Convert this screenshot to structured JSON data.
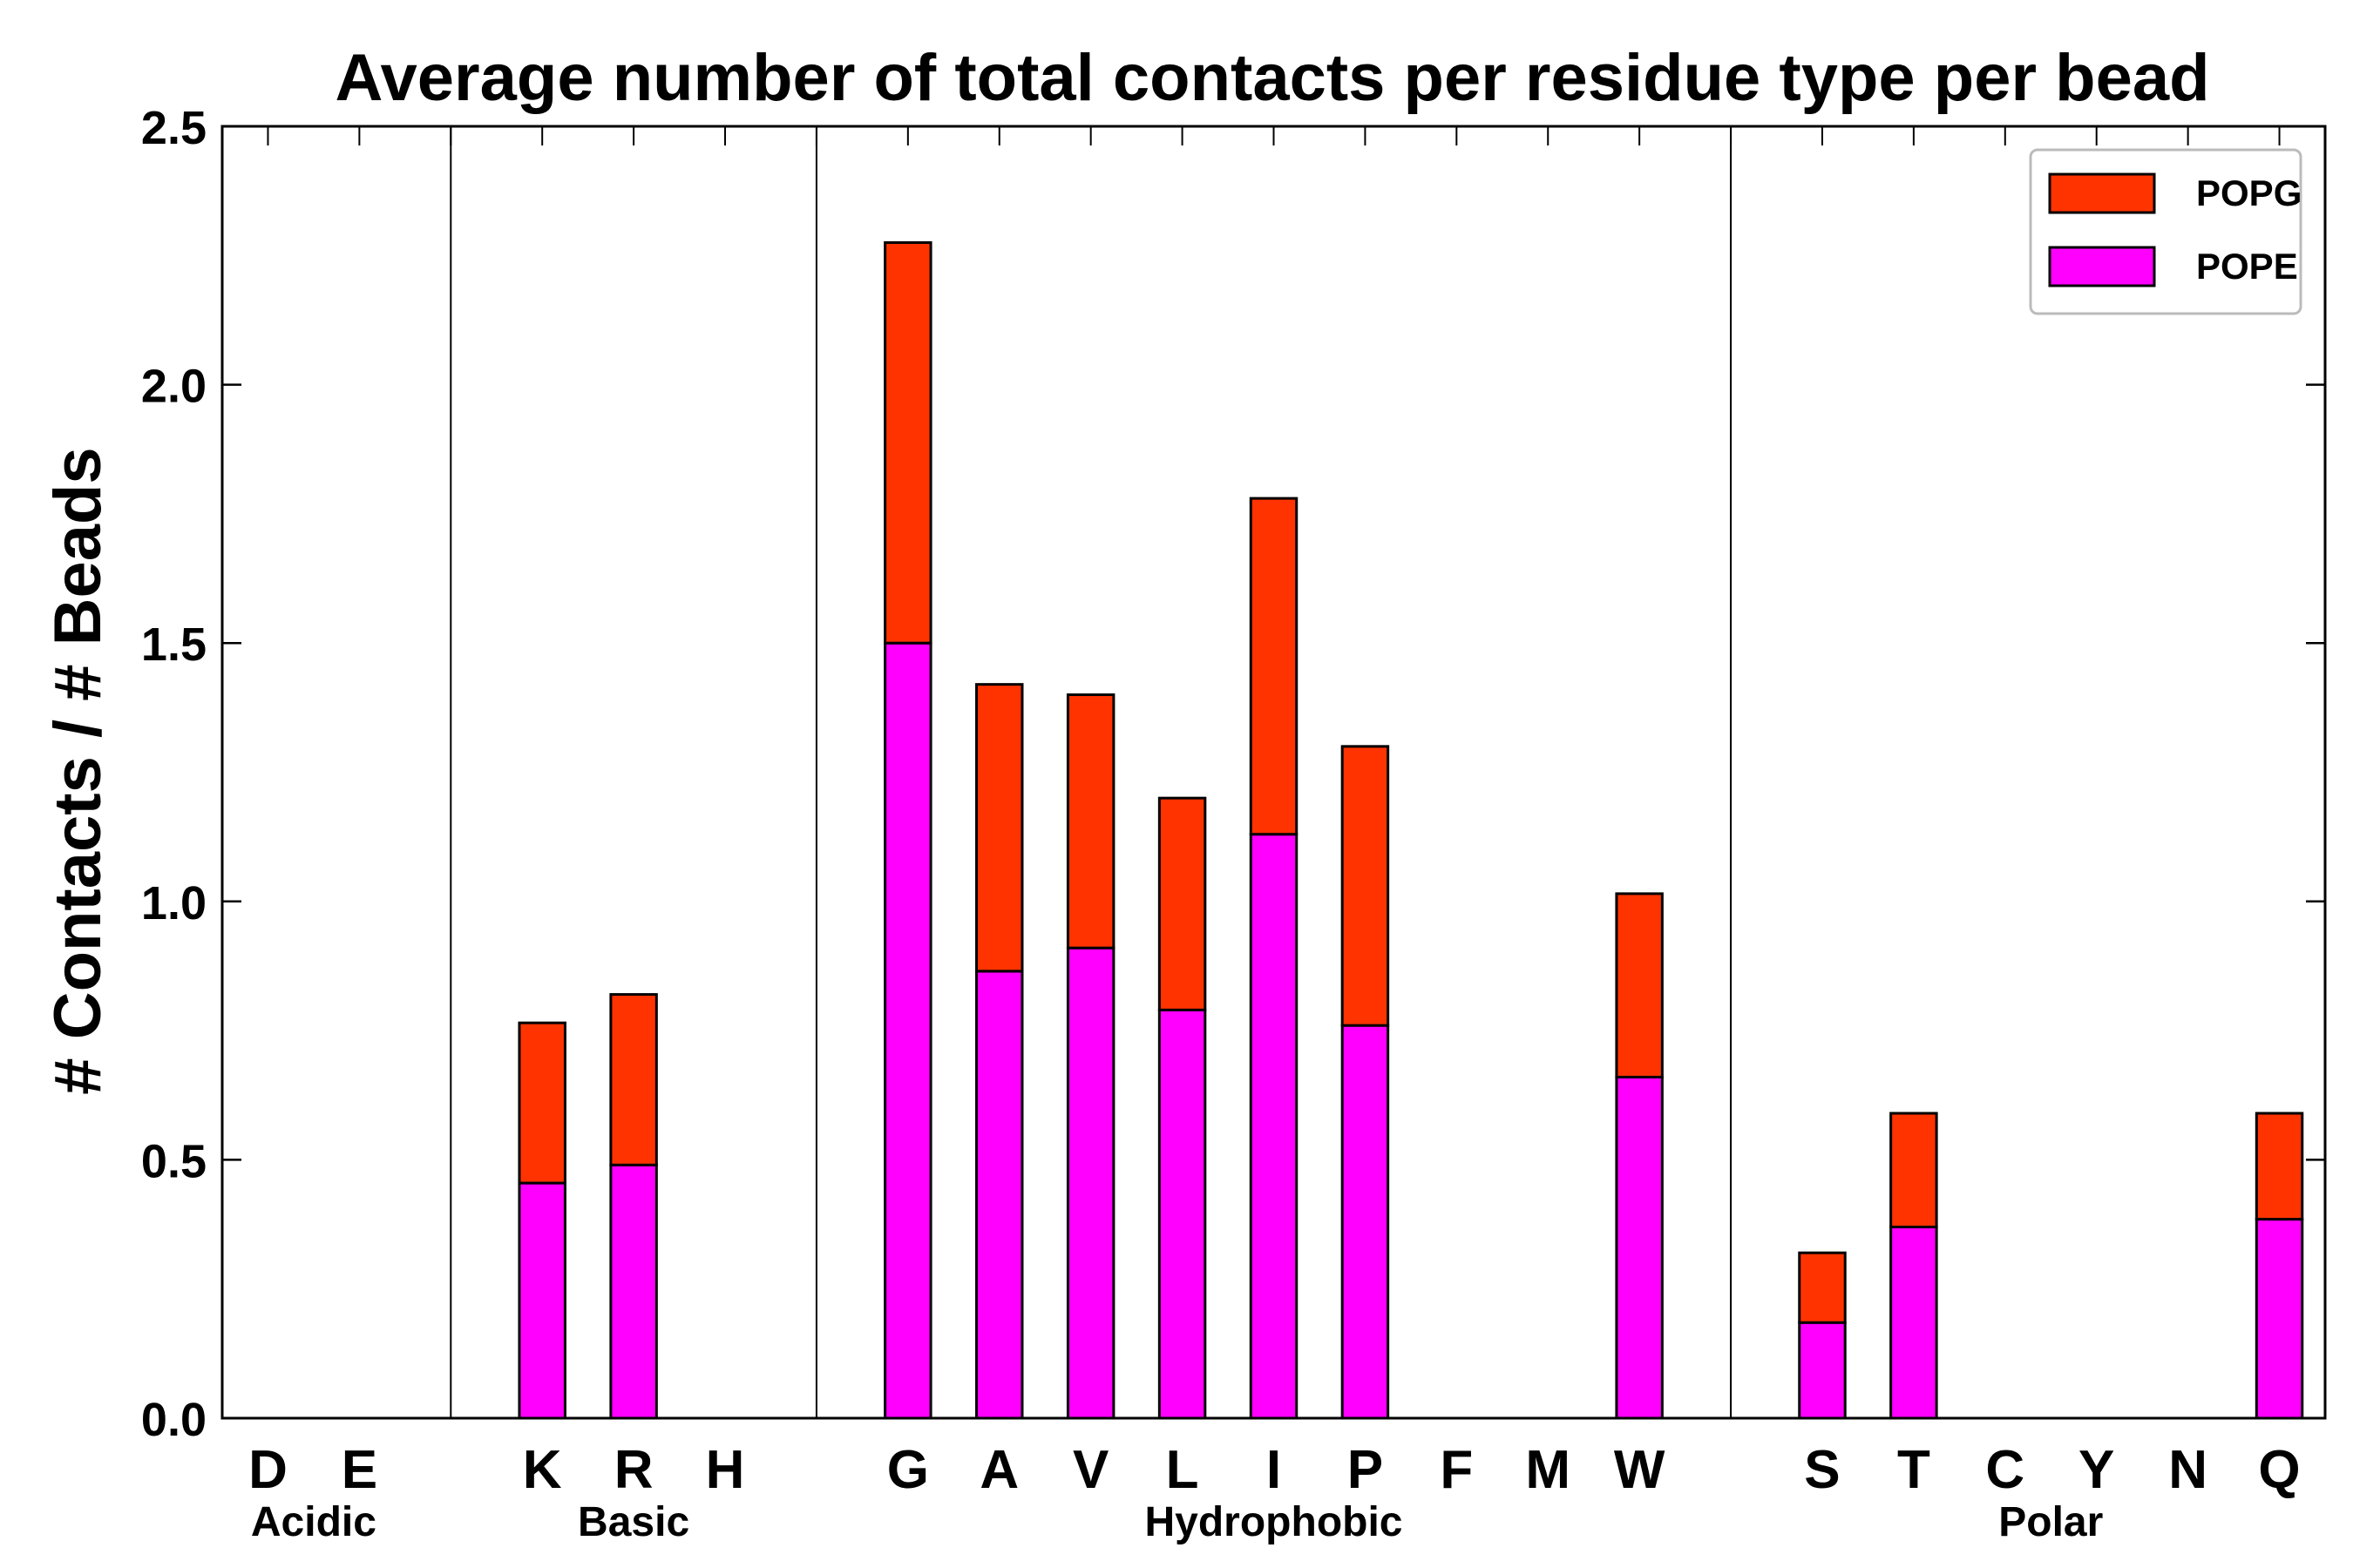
{
  "chart_data": {
    "type": "bar",
    "stacked": true,
    "title": "Average number of total contacts per residue type per bead",
    "xlabel": "",
    "ylabel": "# Contacts / # Beads",
    "ylim": [
      0,
      2.5
    ],
    "yticks": [
      "0.0",
      "0.5",
      "1.0",
      "1.5",
      "2.0",
      "2.5"
    ],
    "categories": [
      "D",
      "E",
      "",
      "K",
      "R",
      "H",
      "",
      "G",
      "A",
      "V",
      "L",
      "I",
      "P",
      "F",
      "M",
      "W",
      "",
      "S",
      "T",
      "C",
      "Y",
      "N",
      "Q"
    ],
    "series": [
      {
        "name": "POPE",
        "color": "#ff00ff",
        "values": [
          0,
          0,
          0,
          0.455,
          0.49,
          0,
          0,
          1.5,
          0.865,
          0.91,
          0.79,
          1.13,
          0.76,
          0,
          0,
          0.66,
          0,
          0.185,
          0.37,
          0,
          0,
          0,
          0.385
        ]
      },
      {
        "name": "POPG",
        "color": "#ff3300",
        "values": [
          0,
          0,
          0,
          0.31,
          0.33,
          0,
          0,
          0.775,
          0.555,
          0.49,
          0.41,
          0.65,
          0.54,
          0,
          0,
          0.355,
          0,
          0.135,
          0.22,
          0,
          0,
          0,
          0.205
        ]
      }
    ],
    "groups": [
      {
        "label": "Acidic",
        "members": [
          "D",
          "E"
        ]
      },
      {
        "label": "Basic",
        "members": [
          "K",
          "R",
          "H"
        ]
      },
      {
        "label": "Hydrophobic",
        "members": [
          "G",
          "A",
          "V",
          "L",
          "I",
          "P",
          "F",
          "M",
          "W"
        ]
      },
      {
        "label": "Polar",
        "members": [
          "S",
          "T",
          "C",
          "Y",
          "N",
          "Q"
        ]
      }
    ],
    "legend": {
      "position": "top-right",
      "entries": [
        "POPG",
        "POPE"
      ]
    }
  }
}
